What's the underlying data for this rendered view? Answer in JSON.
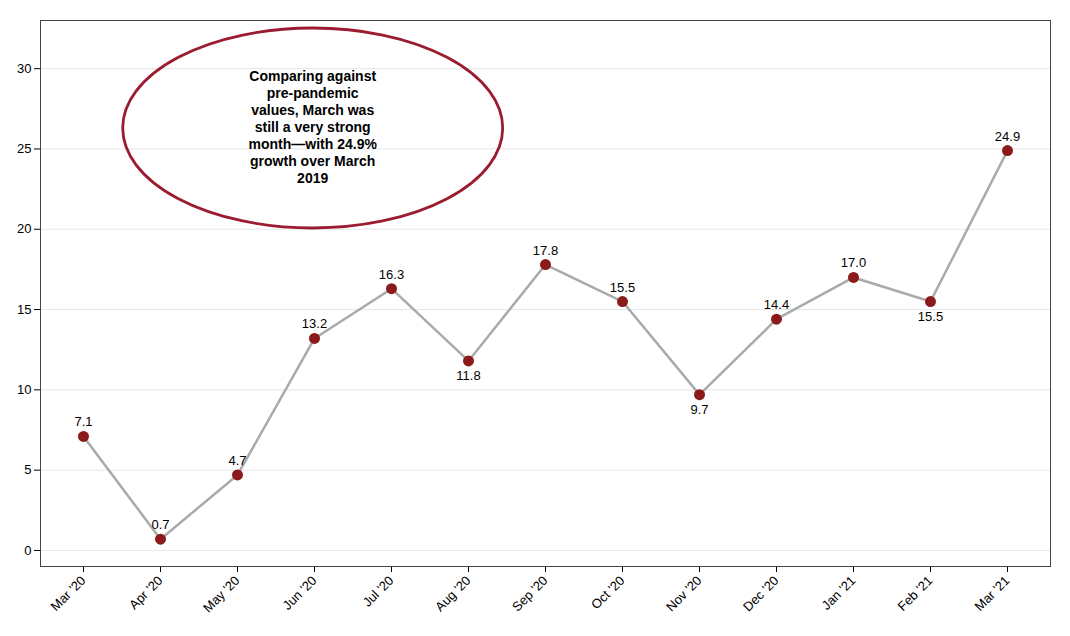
{
  "chart_data": {
    "type": "line",
    "categories": [
      "Mar '20",
      "Apr '20",
      "May '20",
      "Jun '20",
      "Jul '20",
      "Aug '20",
      "Sep '20",
      "Oct '20",
      "Nov '20",
      "Dec '20",
      "Jan '21",
      "Feb '21",
      "Mar '21"
    ],
    "values": [
      7.1,
      0.7,
      4.7,
      13.2,
      16.3,
      11.8,
      17.8,
      15.5,
      9.7,
      14.4,
      17.0,
      15.5,
      24.9
    ],
    "value_labels": [
      "7.1",
      "0.7",
      "4.7",
      "13.2",
      "16.3",
      "11.8",
      "17.8",
      "15.5",
      "9.7",
      "14.4",
      "17.0",
      "15.5",
      "24.9"
    ],
    "color": "#aaaaaa",
    "colors": [
      "#8B1A1A",
      "#8B1A1A",
      "#8B1A1A",
      "#8B1A1A",
      "#8B1A1A",
      "#8B1A1A",
      "#8B1A1A",
      "#8B1A1A",
      "#8B1A1A",
      "#8B1A1A",
      "#8B1A1A",
      "#8B1A1A",
      "#8B1A1A"
    ],
    "marker": "circle",
    "ylim": [
      -1,
      33
    ],
    "yticks": [
      0,
      5,
      10,
      15,
      20,
      25,
      30
    ],
    "grid": true,
    "data_labels": true,
    "annotations": [
      "Comparing against\npre-pandemic\nvalues, March was\nstill a very strong\nmonth—with 24.9%\ngrowth over March\n2019"
    ]
  }
}
